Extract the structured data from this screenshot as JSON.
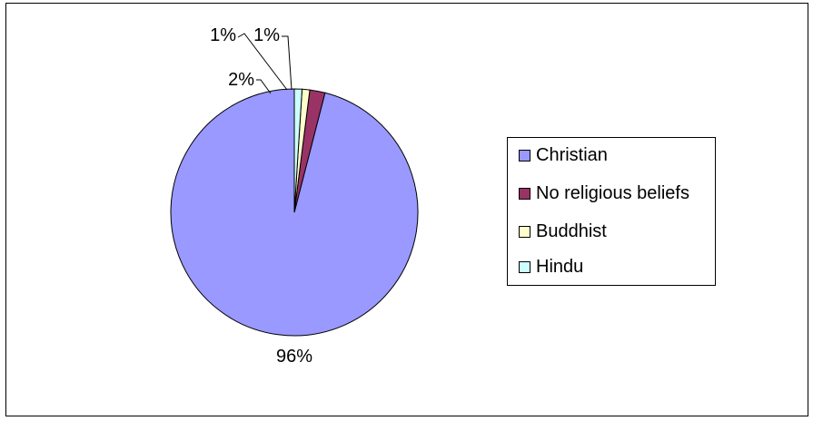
{
  "chart_data": {
    "type": "pie",
    "categories": [
      "Christian",
      "No religious beliefs",
      "Buddhist",
      "Hindu"
    ],
    "values": [
      96,
      2,
      1,
      1
    ],
    "labels": [
      "96%",
      "2%",
      "1%",
      "1%"
    ],
    "colors": [
      "#9999ff",
      "#993366",
      "#ffffcc",
      "#ccffff"
    ],
    "legend_position": "right"
  }
}
